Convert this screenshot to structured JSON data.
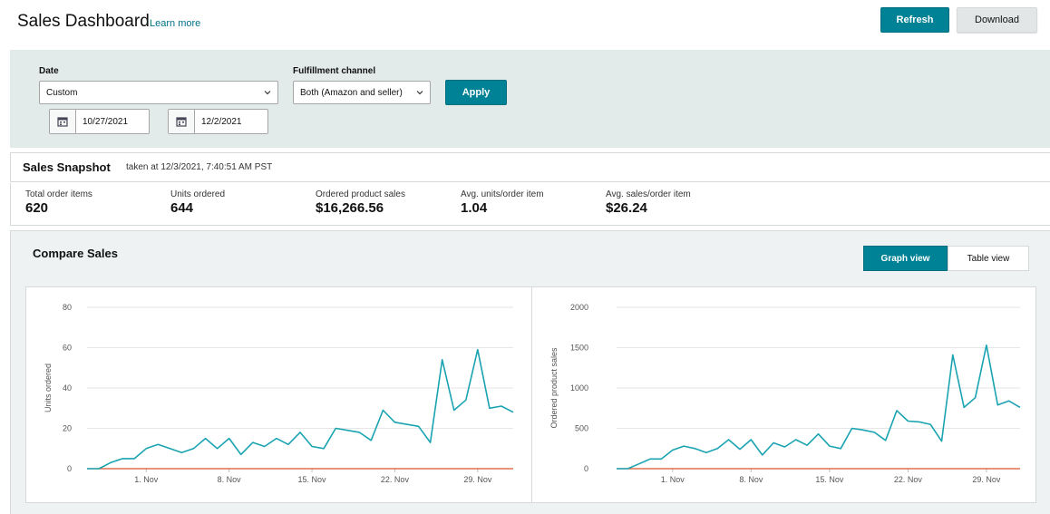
{
  "header": {
    "title": "Sales Dashboard",
    "learn_more": "Learn more",
    "refresh_label": "Refresh",
    "download_label": "Download"
  },
  "filters": {
    "date_label": "Date",
    "date_value": "Custom",
    "start_date": "10/27/2021",
    "end_date": "12/2/2021",
    "channel_label": "Fulfillment channel",
    "channel_value": "Both (Amazon and seller)",
    "apply_label": "Apply"
  },
  "snapshot": {
    "title": "Sales Snapshot",
    "taken_at": "taken at 12/3/2021, 7:40:51 AM PST",
    "metrics": [
      {
        "label": "Total order items",
        "value": "620"
      },
      {
        "label": "Units ordered",
        "value": "644"
      },
      {
        "label": "Ordered product sales",
        "value": "$16,266.56"
      },
      {
        "label": "Avg. units/order item",
        "value": "1.04"
      },
      {
        "label": "Avg. sales/order item",
        "value": "$26.24"
      }
    ]
  },
  "compare": {
    "title": "Compare Sales",
    "graph_view": "Graph view",
    "table_view": "Table view"
  },
  "colors": {
    "accent": "#008296",
    "line_current": "#1aa3b1",
    "line_compare": "#d9532b"
  },
  "chart_data": [
    {
      "type": "line",
      "title": "",
      "ylabel": "Units ordered",
      "xlabel": "",
      "ylim": [
        0,
        80
      ],
      "yticks": [
        0,
        20,
        40,
        60,
        80
      ],
      "x_tick_labels": [
        "1. Nov",
        "8. Nov",
        "15. Nov",
        "22. Nov",
        "29. Nov"
      ],
      "x": [
        "10/27",
        "10/28",
        "10/29",
        "10/30",
        "10/31",
        "11/1",
        "11/2",
        "11/3",
        "11/4",
        "11/5",
        "11/6",
        "11/7",
        "11/8",
        "11/9",
        "11/10",
        "11/11",
        "11/12",
        "11/13",
        "11/14",
        "11/15",
        "11/16",
        "11/17",
        "11/18",
        "11/19",
        "11/20",
        "11/21",
        "11/22",
        "11/23",
        "11/24",
        "11/25",
        "11/26",
        "11/27",
        "11/28",
        "11/29",
        "11/30",
        "12/1",
        "12/2"
      ],
      "grid": true,
      "series": [
        {
          "values": [
            0,
            0,
            3,
            5,
            5,
            10,
            12,
            10,
            8,
            10,
            15,
            10,
            15,
            7,
            13,
            11,
            15,
            12,
            18,
            11,
            10,
            20,
            19,
            18,
            14,
            29,
            23,
            22,
            21,
            13,
            54,
            29,
            34,
            59,
            30,
            31,
            28
          ]
        },
        {
          "values": [
            0,
            0,
            0,
            0,
            0,
            0,
            0,
            0,
            0,
            0,
            0,
            0,
            0,
            0,
            0,
            0,
            0,
            0,
            0,
            0,
            0,
            0,
            0,
            0,
            0,
            0,
            0,
            0,
            0,
            0,
            0,
            0,
            0,
            0,
            0,
            0,
            0
          ]
        }
      ]
    },
    {
      "type": "line",
      "title": "",
      "ylabel": "Ordered product sales",
      "xlabel": "",
      "ylim": [
        0,
        2000
      ],
      "yticks": [
        0,
        500,
        1000,
        1500,
        2000
      ],
      "x_tick_labels": [
        "1. Nov",
        "8. Nov",
        "15. Nov",
        "22. Nov",
        "29. Nov"
      ],
      "x": [
        "10/27",
        "10/28",
        "10/29",
        "10/30",
        "10/31",
        "11/1",
        "11/2",
        "11/3",
        "11/4",
        "11/5",
        "11/6",
        "11/7",
        "11/8",
        "11/9",
        "11/10",
        "11/11",
        "11/12",
        "11/13",
        "11/14",
        "11/15",
        "11/16",
        "11/17",
        "11/18",
        "11/19",
        "11/20",
        "11/21",
        "11/22",
        "11/23",
        "11/24",
        "11/25",
        "11/26",
        "11/27",
        "11/28",
        "11/29",
        "11/30",
        "12/1",
        "12/2"
      ],
      "grid": true,
      "series": [
        {
          "values": [
            0,
            0,
            60,
            120,
            120,
            230,
            280,
            250,
            200,
            250,
            360,
            240,
            360,
            170,
            320,
            270,
            360,
            290,
            430,
            280,
            250,
            500,
            480,
            450,
            350,
            720,
            590,
            580,
            550,
            340,
            1410,
            760,
            880,
            1530,
            790,
            840,
            760
          ]
        },
        {
          "values": [
            0,
            0,
            0,
            0,
            0,
            0,
            0,
            0,
            0,
            0,
            0,
            0,
            0,
            0,
            0,
            0,
            0,
            0,
            0,
            0,
            0,
            0,
            0,
            0,
            0,
            0,
            0,
            0,
            0,
            0,
            0,
            0,
            0,
            0,
            0,
            0,
            0
          ]
        }
      ]
    }
  ]
}
